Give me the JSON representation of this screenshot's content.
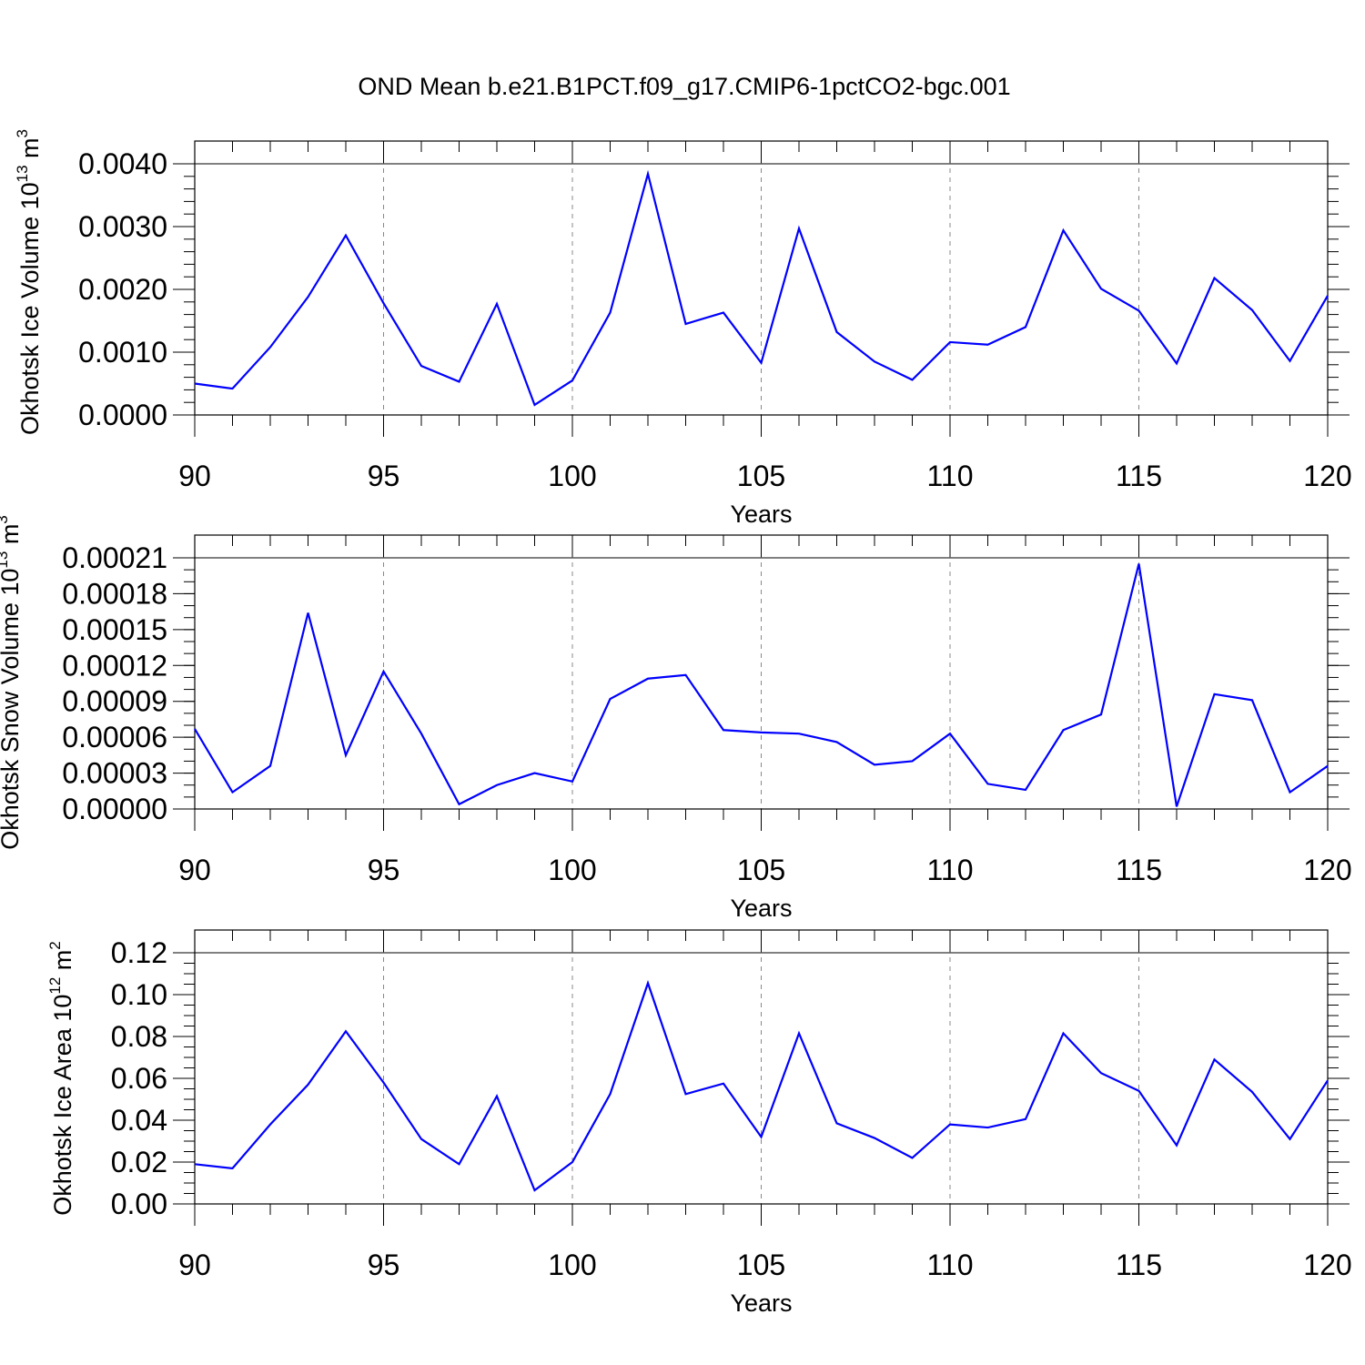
{
  "title": "OND Mean b.e21.B1PCT.f09_g17.CMIP6-1pctCO2-bgc.001",
  "chart_data": [
    {
      "type": "line",
      "ylabel_main": "Okhotsk Ice Volume 10",
      "ylabel_exp": "13",
      "ylabel_unit": " m",
      "ylabel_unit_exp": "3",
      "xlabel": "Years",
      "xlim": [
        90,
        120
      ],
      "ylim": [
        0,
        0.004
      ],
      "xticks": [
        90,
        95,
        100,
        105,
        110,
        115,
        120
      ],
      "xtick_labels": [
        "90",
        "95",
        "100",
        "105",
        "110",
        "115",
        "120"
      ],
      "yticks": [
        0,
        0.001,
        0.002,
        0.003,
        0.004
      ],
      "ytick_labels": [
        "0.0000",
        "0.0010",
        "0.0020",
        "0.0030",
        "0.0040"
      ],
      "y_minor_step": 0.0002,
      "color": "#0000ff",
      "x": [
        90,
        91,
        92,
        93,
        94,
        95,
        96,
        97,
        98,
        99,
        100,
        101,
        102,
        103,
        104,
        105,
        106,
        107,
        108,
        109,
        110,
        111,
        112,
        113,
        114,
        115,
        116,
        117,
        118,
        119,
        120
      ],
      "values": [
        0.0005,
        0.00042,
        0.00108,
        0.00188,
        0.00286,
        0.00178,
        0.00078,
        0.00053,
        0.00177,
        0.00016,
        0.00055,
        0.00163,
        0.00384,
        0.00145,
        0.00163,
        0.00083,
        0.00297,
        0.00132,
        0.00085,
        0.00056,
        0.00116,
        0.00112,
        0.0014,
        0.00294,
        0.00201,
        0.00166,
        0.00082,
        0.00218,
        0.00167,
        0.00086,
        0.0019
      ]
    },
    {
      "type": "line",
      "ylabel_main": "Okhotsk Snow Volume 10",
      "ylabel_exp": "13",
      "ylabel_unit": " m",
      "ylabel_unit_exp": "3",
      "xlabel": "Years",
      "xlim": [
        90,
        120
      ],
      "ylim": [
        0,
        0.00021
      ],
      "xticks": [
        90,
        95,
        100,
        105,
        110,
        115,
        120
      ],
      "xtick_labels": [
        "90",
        "95",
        "100",
        "105",
        "110",
        "115",
        "120"
      ],
      "yticks": [
        0,
        3e-05,
        6e-05,
        9e-05,
        0.00012,
        0.00015,
        0.00018,
        0.00021
      ],
      "ytick_labels": [
        "0.00000",
        "0.00003",
        "0.00006",
        "0.00009",
        "0.00012",
        "0.00015",
        "0.00018",
        "0.00021"
      ],
      "y_minor_step": 1e-05,
      "color": "#0000ff",
      "x": [
        90,
        91,
        92,
        93,
        94,
        95,
        96,
        97,
        98,
        99,
        100,
        101,
        102,
        103,
        104,
        105,
        106,
        107,
        108,
        109,
        110,
        111,
        112,
        113,
        114,
        115,
        116,
        117,
        118,
        119,
        120
      ],
      "values": [
        6.7e-05,
        1.4e-05,
        3.6e-05,
        0.000164,
        4.5e-05,
        0.000115,
        6.3e-05,
        4e-06,
        2e-05,
        3e-05,
        2.3e-05,
        9.2e-05,
        0.000109,
        0.000112,
        6.6e-05,
        6.4e-05,
        6.3e-05,
        5.6e-05,
        3.7e-05,
        4e-05,
        6.3e-05,
        2.1e-05,
        1.6e-05,
        6.6e-05,
        7.9e-05,
        0.000205,
        2e-06,
        9.6e-05,
        9.1e-05,
        1.4e-05,
        3.6e-05
      ]
    },
    {
      "type": "line",
      "ylabel_main": "Okhotsk Ice Area 10",
      "ylabel_exp": "12",
      "ylabel_unit": " m",
      "ylabel_unit_exp": "2",
      "xlabel": "Years",
      "xlim": [
        90,
        120
      ],
      "ylim": [
        0,
        0.12
      ],
      "xticks": [
        90,
        95,
        100,
        105,
        110,
        115,
        120
      ],
      "xtick_labels": [
        "90",
        "95",
        "100",
        "105",
        "110",
        "115",
        "120"
      ],
      "yticks": [
        0,
        0.02,
        0.04,
        0.06,
        0.08,
        0.1,
        0.12
      ],
      "ytick_labels": [
        "0.00",
        "0.02",
        "0.04",
        "0.06",
        "0.08",
        "0.10",
        "0.12"
      ],
      "y_minor_step": 0.005,
      "color": "#0000ff",
      "x": [
        90,
        91,
        92,
        93,
        94,
        95,
        96,
        97,
        98,
        99,
        100,
        101,
        102,
        103,
        104,
        105,
        106,
        107,
        108,
        109,
        110,
        111,
        112,
        113,
        114,
        115,
        116,
        117,
        118,
        119,
        120
      ],
      "values": [
        0.019,
        0.017,
        0.038,
        0.057,
        0.0825,
        0.058,
        0.031,
        0.019,
        0.0515,
        0.0065,
        0.02,
        0.0525,
        0.1055,
        0.0525,
        0.0575,
        0.032,
        0.0815,
        0.0385,
        0.0315,
        0.022,
        0.038,
        0.0365,
        0.0405,
        0.0815,
        0.0625,
        0.054,
        0.028,
        0.069,
        0.0535,
        0.031,
        0.059
      ]
    }
  ]
}
